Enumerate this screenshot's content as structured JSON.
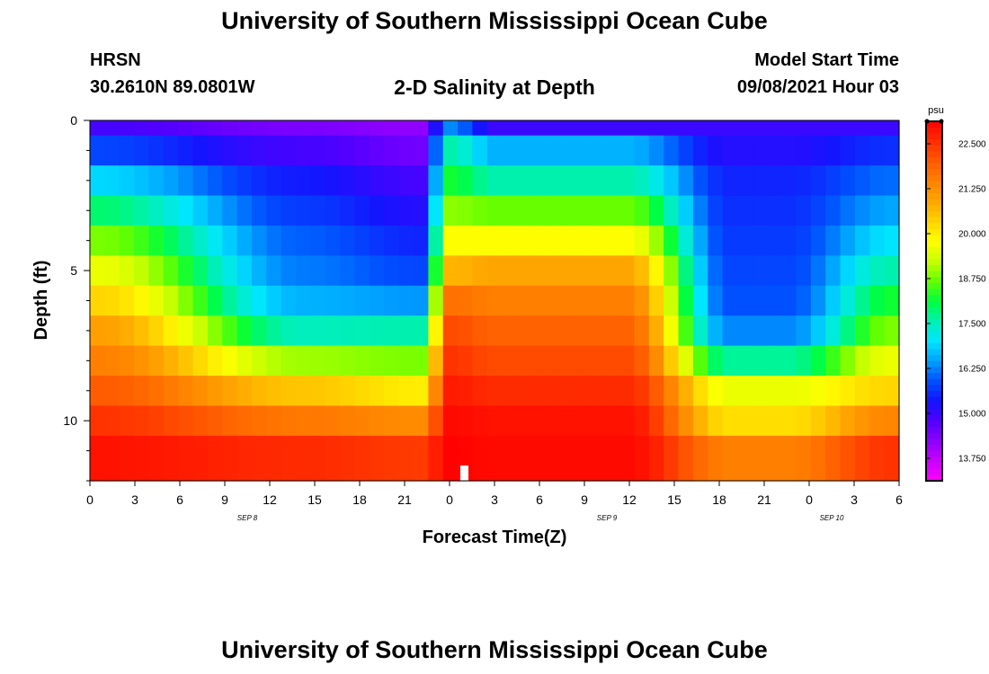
{
  "header": {
    "title": "University of Southern Mississippi Ocean Cube",
    "station": "HRSN",
    "coordinates": "30.2610N  89.0801W",
    "chart_title": "2-D Salinity at Depth",
    "model_start_label": "Model Start Time",
    "model_start_value": "09/08/2021 Hour 03"
  },
  "footer": {
    "title": "University of Southern Mississippi Ocean Cube"
  },
  "chart_data": {
    "type": "heatmap",
    "title": "2-D Salinity at Depth",
    "xlabel": "Forecast Time(Z)",
    "ylabel": "Depth (ft)",
    "x_ticks": [
      "0",
      "3",
      "6",
      "9",
      "12",
      "15",
      "18",
      "21",
      "0",
      "3",
      "6",
      "9",
      "12",
      "15",
      "18",
      "21",
      "0",
      "3",
      "6"
    ],
    "date_labels": [
      {
        "label": "SEP 8",
        "tick_index": 3.5
      },
      {
        "label": "SEP 9",
        "tick_index": 11.5
      },
      {
        "label": "SEP 10",
        "tick_index": 16.5
      }
    ],
    "y_ticks": [
      "0",
      "5",
      "10"
    ],
    "y_tick_depths": [
      0,
      5,
      10
    ],
    "ylim": [
      0,
      12
    ],
    "depth_layers": 12,
    "time_steps": 55,
    "colorbar": {
      "unit": "psu",
      "min": 13.125,
      "max": 23.125,
      "ticks": [
        "22.500",
        "21.250",
        "20.000",
        "18.750",
        "17.500",
        "16.250",
        "15.000",
        "13.750"
      ],
      "tick_values": [
        22.5,
        21.25,
        20.0,
        18.75,
        17.5,
        16.25,
        15.0,
        13.75
      ],
      "palette": [
        "#ff00ff",
        "#c800ff",
        "#8c00ff",
        "#5000ff",
        "#1414ff",
        "#0050ff",
        "#00a0ff",
        "#00e6ff",
        "#00f0b4",
        "#00ff3c",
        "#64ff00",
        "#c8ff00",
        "#ffff00",
        "#ffd200",
        "#ffa500",
        "#ff8200",
        "#ff5a00",
        "#ff2d00",
        "#ff0000"
      ]
    },
    "profiles": {
      "stratified_start": [
        14.9,
        15.8,
        16.9,
        17.9,
        18.8,
        19.6,
        20.3,
        21.0,
        21.5,
        22.0,
        22.5,
        22.9
      ],
      "stratified_noon": [
        14.4,
        14.9,
        15.4,
        15.7,
        16.0,
        16.2,
        16.6,
        17.5,
        19.0,
        20.5,
        21.6,
        22.6
      ],
      "stratified_evening": [
        14.2,
        14.5,
        14.9,
        15.2,
        15.5,
        15.8,
        16.4,
        17.6,
        18.8,
        20.0,
        21.3,
        22.4
      ],
      "mixing_front": [
        16.3,
        17.6,
        18.2,
        18.9,
        19.8,
        20.7,
        21.7,
        22.2,
        22.5,
        22.8,
        23.0,
        23.1
      ],
      "saline_plume": [
        15.0,
        16.6,
        17.6,
        18.7,
        19.8,
        20.9,
        21.5,
        21.9,
        22.2,
        22.6,
        22.9,
        23.0
      ],
      "fresh_trough": [
        15.0,
        15.2,
        15.5,
        15.6,
        15.7,
        15.8,
        15.9,
        16.3,
        17.7,
        19.6,
        20.2,
        21.5
      ],
      "recovery_end": [
        15.0,
        15.6,
        16.1,
        16.5,
        17.0,
        17.6,
        18.2,
        18.8,
        19.6,
        20.3,
        21.4,
        22.5
      ]
    },
    "keyframes": [
      {
        "step": 0,
        "profile": "stratified_start"
      },
      {
        "step": 14,
        "profile": "stratified_noon"
      },
      {
        "step": 22,
        "profile": "stratified_evening"
      },
      {
        "step": 24,
        "profile": "mixing_front"
      },
      {
        "step": 27,
        "profile": "saline_plume"
      },
      {
        "step": 36,
        "profile": "saline_plume"
      },
      {
        "step": 43,
        "profile": "fresh_trough"
      },
      {
        "step": 47,
        "profile": "fresh_trough"
      },
      {
        "step": 54,
        "profile": "recovery_end"
      }
    ]
  }
}
